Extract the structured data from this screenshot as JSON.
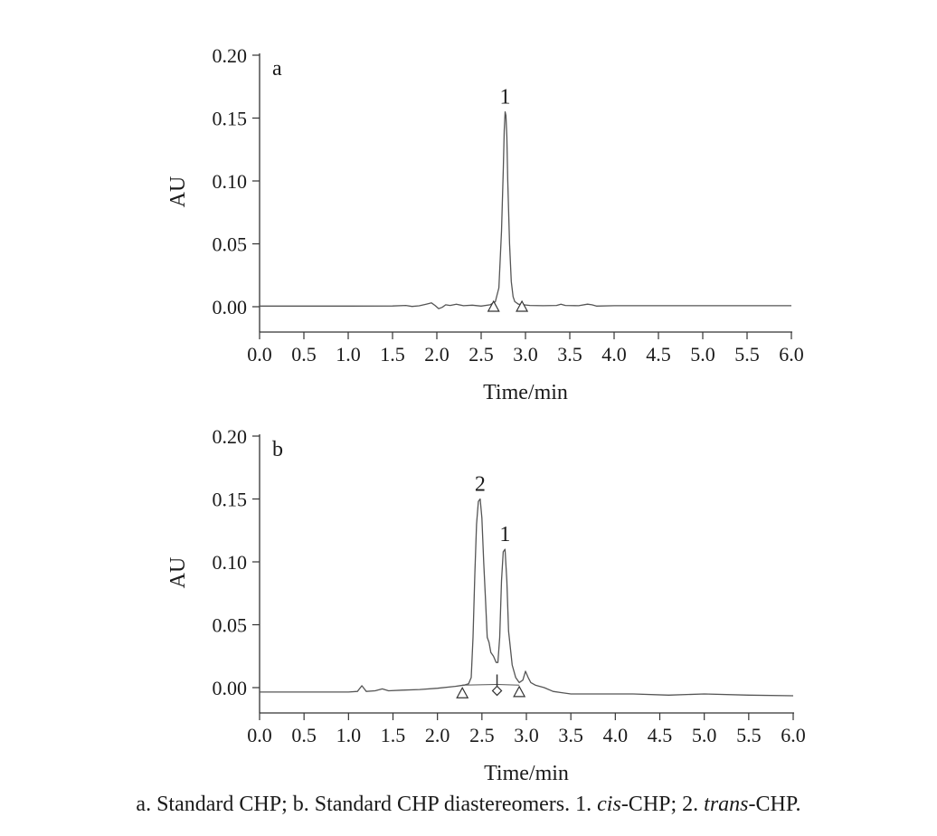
{
  "chart_data": [
    {
      "type": "line",
      "panel_label": "a",
      "xlabel": "Time/min",
      "ylabel": "AU",
      "xlim": [
        0,
        6
      ],
      "ylim": [
        -0.02,
        0.2
      ],
      "x_ticks": [
        {
          "value": 0,
          "label": "0.0"
        },
        {
          "value": 0.5,
          "label": "0.5"
        },
        {
          "value": 1,
          "label": "1.0"
        },
        {
          "value": 1.5,
          "label": "1.5"
        },
        {
          "value": 2,
          "label": "2.0"
        },
        {
          "value": 2.5,
          "label": "2.5"
        },
        {
          "value": 3,
          "label": "3.0"
        },
        {
          "value": 3.5,
          "label": "3.5"
        },
        {
          "value": 4,
          "label": "4.0"
        },
        {
          "value": 4.5,
          "label": "4.5"
        },
        {
          "value": 5,
          "label": "5.0"
        },
        {
          "value": 5.5,
          "label": "5.5"
        },
        {
          "value": 6,
          "label": "6.0"
        }
      ],
      "y_ticks": [
        {
          "value": 0,
          "label": "0.00"
        },
        {
          "value": 0.05,
          "label": "0.05"
        },
        {
          "value": 0.1,
          "label": "0.10"
        },
        {
          "value": 0.15,
          "label": "0.15"
        },
        {
          "value": 0.2,
          "label": "0.20"
        }
      ],
      "grid": false,
      "series": [
        {
          "x": [
            0,
            1.0,
            1.5,
            1.65,
            1.72,
            1.8,
            1.88,
            1.94,
            1.98,
            2.02,
            2.06,
            2.1,
            2.15,
            2.22,
            2.3,
            2.4,
            2.5,
            2.6,
            2.66,
            2.7,
            2.73,
            2.75,
            2.76,
            2.77,
            2.78,
            2.79,
            2.8,
            2.82,
            2.84,
            2.86,
            2.88,
            2.92,
            2.98,
            3.05,
            3.2,
            3.35,
            3.4,
            3.45,
            3.6,
            3.7,
            3.75,
            3.8,
            4.0,
            4.5,
            5.0,
            5.5,
            6.0
          ],
          "y": [
            0.0005,
            0.0005,
            0.0006,
            0.001,
            0.0002,
            0.0007,
            0.002,
            0.003,
            0.001,
            -0.0015,
            -0.0005,
            0.0015,
            0.001,
            0.002,
            0.0008,
            0.0012,
            0.0005,
            0.0015,
            0.004,
            0.015,
            0.06,
            0.11,
            0.14,
            0.155,
            0.152,
            0.135,
            0.1,
            0.05,
            0.02,
            0.008,
            0.004,
            0.002,
            0.0015,
            0.001,
            0.0008,
            0.001,
            0.002,
            0.001,
            0.0008,
            0.002,
            0.0015,
            0.0005,
            0.0008,
            0.0008,
            0.0008,
            0.0008,
            0.0008
          ]
        }
      ],
      "peak_annotations": [
        {
          "label": "1",
          "x": 2.77,
          "y": 0.155
        }
      ],
      "integration_markers": [
        {
          "shape": "triangle",
          "x": 2.64,
          "y": 0.0
        },
        {
          "shape": "triangle",
          "x": 2.96,
          "y": 0.0
        }
      ],
      "baselines": []
    },
    {
      "type": "line",
      "panel_label": "b",
      "xlabel": "Time/min",
      "ylabel": "AU",
      "xlim": [
        0,
        6
      ],
      "ylim": [
        -0.02,
        0.2
      ],
      "x_ticks": [
        {
          "value": 0,
          "label": "0.0"
        },
        {
          "value": 0.5,
          "label": "0.5"
        },
        {
          "value": 1,
          "label": "1.0"
        },
        {
          "value": 1.5,
          "label": "1.5"
        },
        {
          "value": 2,
          "label": "2.0"
        },
        {
          "value": 2.5,
          "label": "2.5"
        },
        {
          "value": 3,
          "label": "3.0"
        },
        {
          "value": 3.5,
          "label": "3.5"
        },
        {
          "value": 4,
          "label": "4.0"
        },
        {
          "value": 4.5,
          "label": "4.5"
        },
        {
          "value": 5,
          "label": "5.0"
        },
        {
          "value": 5.5,
          "label": "5.5"
        },
        {
          "value": 6,
          "label": "6.0"
        }
      ],
      "y_ticks": [
        {
          "value": 0,
          "label": "0.00"
        },
        {
          "value": 0.05,
          "label": "0.05"
        },
        {
          "value": 0.1,
          "label": "0.10"
        },
        {
          "value": 0.15,
          "label": "0.15"
        },
        {
          "value": 0.2,
          "label": "0.20"
        }
      ],
      "grid": false,
      "series": [
        {
          "x": [
            0,
            1.0,
            1.1,
            1.15,
            1.2,
            1.3,
            1.38,
            1.45,
            1.6,
            1.8,
            2.0,
            2.2,
            2.3,
            2.35,
            2.38,
            2.4,
            2.42,
            2.44,
            2.46,
            2.48,
            2.5,
            2.52,
            2.54,
            2.56,
            2.58,
            2.6,
            2.63,
            2.66,
            2.68,
            2.7,
            2.72,
            2.74,
            2.76,
            2.78,
            2.8,
            2.84,
            2.88,
            2.92,
            2.96,
            2.99,
            3.02,
            3.05,
            3.1,
            3.2,
            3.3,
            3.4,
            3.5,
            3.8,
            4.2,
            4.6,
            5.0,
            5.5,
            6.0
          ],
          "y": [
            -0.0035,
            -0.0035,
            -0.003,
            0.0015,
            -0.003,
            -0.0025,
            -0.001,
            -0.0025,
            -0.002,
            -0.0015,
            -0.0005,
            0.001,
            0.002,
            0.003,
            0.008,
            0.04,
            0.09,
            0.13,
            0.148,
            0.15,
            0.135,
            0.1,
            0.07,
            0.04,
            0.036,
            0.028,
            0.025,
            0.02,
            0.02,
            0.04,
            0.085,
            0.108,
            0.11,
            0.085,
            0.045,
            0.018,
            0.008,
            0.004,
            0.006,
            0.013,
            0.008,
            0.004,
            0.002,
            0.0,
            -0.003,
            -0.004,
            -0.005,
            -0.005,
            -0.005,
            -0.006,
            -0.005,
            -0.006,
            -0.0065
          ]
        }
      ],
      "peak_annotations": [
        {
          "label": "2",
          "x": 2.48,
          "y": 0.15
        },
        {
          "label": "1",
          "x": 2.76,
          "y": 0.11
        }
      ],
      "integration_markers": [
        {
          "shape": "triangle",
          "x": 2.28,
          "y": -0.0045
        },
        {
          "shape": "diamond",
          "x": 2.67,
          "y": -0.0025
        },
        {
          "shape": "triangle",
          "x": 2.92,
          "y": -0.0035
        }
      ],
      "baselines": [
        {
          "x": [
            2.28,
            2.67
          ],
          "y": [
            0.002,
            0.0025
          ]
        },
        {
          "x": [
            2.67,
            2.92
          ],
          "y": [
            0.0025,
            0.002
          ]
        }
      ]
    }
  ],
  "caption": {
    "parts": [
      {
        "text": "a. Standard CHP; b. Standard CHP diastereomers. 1. ",
        "italic": false
      },
      {
        "text": "cis",
        "italic": true
      },
      {
        "text": "-CHP; 2. ",
        "italic": false
      },
      {
        "text": "trans",
        "italic": true
      },
      {
        "text": "-CHP.",
        "italic": false
      }
    ]
  }
}
